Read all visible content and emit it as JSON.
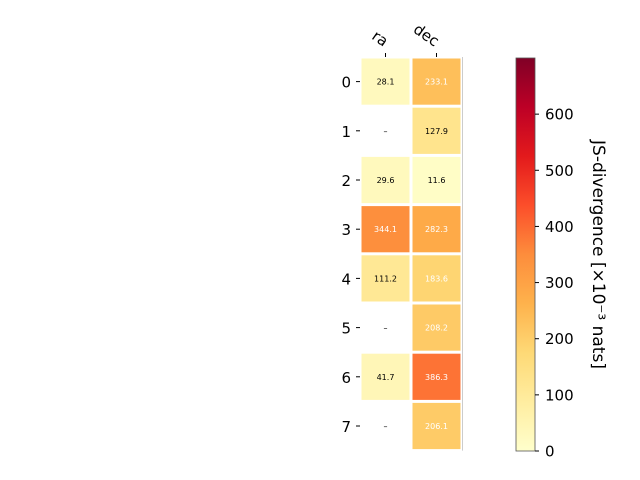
{
  "chart_data": {
    "type": "heatmap",
    "columns": [
      "ra",
      "dec"
    ],
    "rows": [
      "0",
      "1",
      "2",
      "3",
      "4",
      "5",
      "6",
      "7"
    ],
    "values": [
      [
        28.1,
        233.1
      ],
      [
        null,
        127.9
      ],
      [
        29.6,
        11.6
      ],
      [
        344.1,
        282.3
      ],
      [
        111.2,
        183.6
      ],
      [
        null,
        208.2
      ],
      [
        41.7,
        386.3
      ],
      [
        null,
        206.1
      ]
    ],
    "cell_labels": [
      [
        "28.1",
        "233.1"
      ],
      [
        "–",
        "127.9"
      ],
      [
        "29.6",
        "11.6"
      ],
      [
        "344.1",
        "282.3"
      ],
      [
        "111.2",
        "183.6"
      ],
      [
        "–",
        "208.2"
      ],
      [
        "41.7",
        "386.3"
      ],
      [
        "–",
        "206.1"
      ]
    ],
    "missing_label": "–",
    "colorbar": {
      "label": "JS-divergence [×10⁻³ nats]",
      "ticks": [
        "0",
        "100",
        "200",
        "300",
        "400",
        "500",
        "600"
      ],
      "tick_values": [
        0,
        100,
        200,
        300,
        400,
        500,
        600
      ],
      "range": [
        0,
        700
      ],
      "colormap": "YlOrRd"
    },
    "grid": false
  }
}
